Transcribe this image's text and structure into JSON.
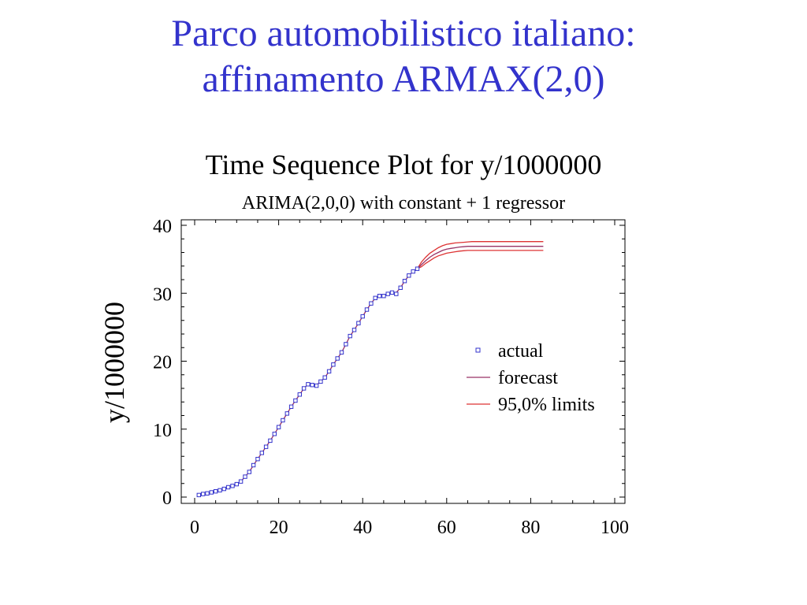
{
  "slide": {
    "title_line1": "Parco automobilistico italiano:",
    "title_line2": "affinamento ARMAX(2,0)",
    "title_color": "#3333cc"
  },
  "chart_data": {
    "type": "line",
    "title": "Time Sequence Plot for y/1000000",
    "subtitle": "ARIMA(2,0,0) with constant + 1 regressor",
    "xlabel": "",
    "ylabel": "y/1000000",
    "xlim": [
      0,
      100
    ],
    "ylim": [
      0,
      40
    ],
    "x_ticks": [
      0,
      20,
      40,
      60,
      80,
      100
    ],
    "y_ticks": [
      0,
      10,
      20,
      30,
      40
    ],
    "grid": false,
    "legend_position": "right",
    "legend": [
      {
        "key": "actual",
        "label": "actual",
        "marker": "square",
        "color": "#3333cc"
      },
      {
        "key": "forecast",
        "label": "forecast",
        "marker": "line",
        "color": "#993366"
      },
      {
        "key": "limits",
        "label": "95,0% limits",
        "marker": "line",
        "color": "#dd3333"
      }
    ],
    "series": [
      {
        "name": "actual",
        "x": [
          1,
          2,
          3,
          4,
          5,
          6,
          7,
          8,
          9,
          10,
          11,
          12,
          13,
          14,
          15,
          16,
          17,
          18,
          19,
          20,
          21,
          22,
          23,
          24,
          25,
          26,
          27,
          28,
          29,
          30,
          31,
          32,
          33,
          34,
          35,
          36,
          37,
          38,
          39,
          40,
          41,
          42,
          43,
          44,
          45,
          46,
          47,
          48,
          49,
          50,
          51,
          52,
          53
        ],
        "y": [
          0.3,
          0.45,
          0.55,
          0.7,
          0.85,
          1.0,
          1.2,
          1.45,
          1.65,
          1.9,
          2.3,
          3.0,
          3.7,
          4.7,
          5.6,
          6.5,
          7.4,
          8.3,
          9.3,
          10.3,
          11.3,
          12.3,
          13.3,
          14.2,
          15.1,
          16.0,
          16.6,
          16.5,
          16.4,
          17.0,
          17.6,
          18.5,
          19.5,
          20.4,
          21.3,
          22.5,
          23.7,
          24.6,
          25.6,
          26.6,
          27.6,
          28.5,
          29.3,
          29.6,
          29.6,
          29.9,
          30.1,
          29.9,
          30.8,
          31.8,
          32.6,
          33.2,
          33.6
        ]
      },
      {
        "name": "forecast",
        "x": [
          1,
          2,
          3,
          4,
          5,
          6,
          7,
          8,
          9,
          10,
          11,
          12,
          13,
          14,
          15,
          16,
          17,
          18,
          19,
          20,
          21,
          22,
          23,
          24,
          25,
          26,
          27,
          28,
          29,
          30,
          31,
          32,
          33,
          34,
          35,
          36,
          37,
          38,
          39,
          40,
          41,
          42,
          43,
          44,
          45,
          46,
          47,
          48,
          49,
          50,
          51,
          52,
          53,
          54,
          55,
          56,
          57,
          58,
          59,
          60,
          61,
          62,
          63,
          64,
          65,
          66,
          67,
          68,
          70,
          72,
          75,
          78,
          80,
          83
        ],
        "y": [
          0.3,
          0.45,
          0.55,
          0.7,
          0.85,
          1.0,
          1.2,
          1.45,
          1.65,
          1.9,
          2.3,
          3.0,
          3.7,
          4.7,
          5.6,
          6.5,
          7.4,
          8.3,
          9.3,
          10.3,
          11.3,
          12.3,
          13.3,
          14.2,
          15.1,
          16.0,
          16.6,
          16.6,
          16.5,
          17.0,
          17.6,
          18.5,
          19.5,
          20.4,
          21.3,
          22.5,
          23.7,
          24.6,
          25.6,
          26.6,
          27.6,
          28.5,
          29.3,
          29.6,
          29.7,
          29.9,
          30.1,
          30.1,
          30.8,
          31.8,
          32.6,
          33.2,
          33.6,
          34.2,
          34.8,
          35.3,
          35.7,
          36.0,
          36.3,
          36.5,
          36.6,
          36.7,
          36.8,
          36.85,
          36.9,
          36.9,
          36.9,
          36.9,
          36.9,
          36.9,
          36.9,
          36.9,
          36.9,
          36.9
        ]
      },
      {
        "name": "upper 95,0% limit",
        "x": [
          53,
          54,
          55,
          56,
          57,
          58,
          59,
          60,
          61,
          62,
          63,
          64,
          65,
          66,
          67,
          68,
          70,
          72,
          75,
          78,
          80,
          83
        ],
        "y": [
          33.6,
          34.6,
          35.3,
          35.9,
          36.3,
          36.7,
          37.0,
          37.2,
          37.3,
          37.4,
          37.45,
          37.5,
          37.55,
          37.6,
          37.6,
          37.6,
          37.6,
          37.6,
          37.6,
          37.6,
          37.6,
          37.6
        ]
      },
      {
        "name": "lower 95,0% limit",
        "x": [
          53,
          54,
          55,
          56,
          57,
          58,
          59,
          60,
          61,
          62,
          63,
          64,
          65,
          66,
          67,
          68,
          70,
          72,
          75,
          78,
          80,
          83
        ],
        "y": [
          33.6,
          33.9,
          34.4,
          34.8,
          35.2,
          35.5,
          35.7,
          35.9,
          36.0,
          36.1,
          36.2,
          36.25,
          36.3,
          36.3,
          36.3,
          36.3,
          36.3,
          36.3,
          36.3,
          36.3,
          36.3,
          36.3
        ]
      }
    ]
  }
}
